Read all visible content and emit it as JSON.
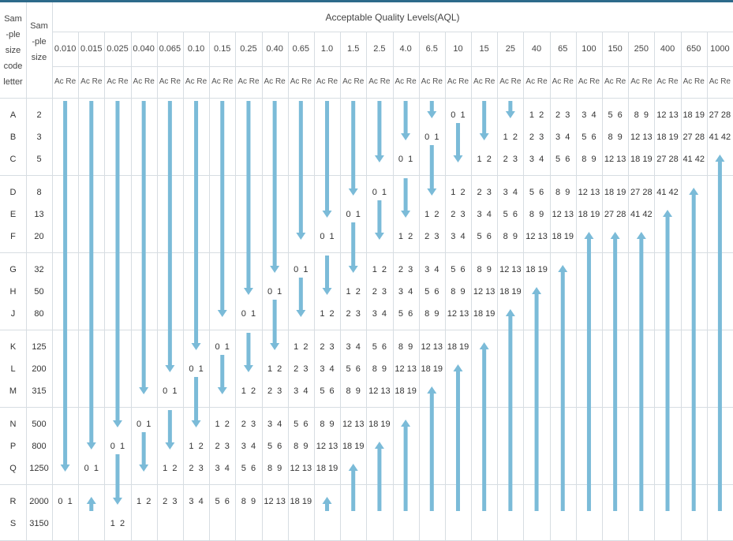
{
  "header": {
    "letter_col": [
      "Sam",
      "-ple",
      "size",
      "code",
      "letter"
    ],
    "size_col": [
      "Sam",
      "-ple",
      "size"
    ],
    "aql_title": "Acceptable Quality Levels(AQL)",
    "acre_label": "Ac Re"
  },
  "aql_levels": [
    "0.010",
    "0.015",
    "0.025",
    "0.040",
    "0.065",
    "0.10",
    "0.15",
    "0.25",
    "0.40",
    "0.65",
    "1.0",
    "1.5",
    "2.5",
    "4.0",
    "6.5",
    "10",
    "15",
    "25",
    "40",
    "65",
    "100",
    "150",
    "250",
    "400",
    "650",
    "1000"
  ],
  "rows": [
    {
      "letter": "A",
      "size": "2"
    },
    {
      "letter": "B",
      "size": "3"
    },
    {
      "letter": "C",
      "size": "5"
    },
    {
      "letter": "D",
      "size": "8"
    },
    {
      "letter": "E",
      "size": "13"
    },
    {
      "letter": "F",
      "size": "20"
    },
    {
      "letter": "G",
      "size": "32"
    },
    {
      "letter": "H",
      "size": "50"
    },
    {
      "letter": "J",
      "size": "80"
    },
    {
      "letter": "K",
      "size": "125"
    },
    {
      "letter": "L",
      "size": "200"
    },
    {
      "letter": "M",
      "size": "315"
    },
    {
      "letter": "N",
      "size": "500"
    },
    {
      "letter": "P",
      "size": "800"
    },
    {
      "letter": "Q",
      "size": "1250"
    },
    {
      "letter": "R",
      "size": "2000"
    },
    {
      "letter": "S",
      "size": "3150"
    }
  ],
  "value_cells": [
    {
      "row": 0,
      "col": 15,
      "text": "0  1"
    },
    {
      "row": 0,
      "col": 18,
      "text": "1  2"
    },
    {
      "row": 0,
      "col": 19,
      "text": "2  3"
    },
    {
      "row": 0,
      "col": 20,
      "text": "3  4"
    },
    {
      "row": 0,
      "col": 21,
      "text": "5  6"
    },
    {
      "row": 0,
      "col": 22,
      "text": "8  9"
    },
    {
      "row": 0,
      "col": 23,
      "text": "12 13"
    },
    {
      "row": 0,
      "col": 24,
      "text": "18 19"
    },
    {
      "row": 0,
      "col": 25,
      "text": "27 28"
    },
    {
      "row": 1,
      "col": 14,
      "text": "0  1"
    },
    {
      "row": 1,
      "col": 17,
      "text": "1  2"
    },
    {
      "row": 1,
      "col": 18,
      "text": "2  3"
    },
    {
      "row": 1,
      "col": 19,
      "text": "3  4"
    },
    {
      "row": 1,
      "col": 20,
      "text": "5  6"
    },
    {
      "row": 1,
      "col": 21,
      "text": "8  9"
    },
    {
      "row": 1,
      "col": 22,
      "text": "12 13"
    },
    {
      "row": 1,
      "col": 23,
      "text": "18 19"
    },
    {
      "row": 1,
      "col": 24,
      "text": "27 28"
    },
    {
      "row": 1,
      "col": 25,
      "text": "41 42"
    },
    {
      "row": 2,
      "col": 13,
      "text": "0  1"
    },
    {
      "row": 2,
      "col": 16,
      "text": "1  2"
    },
    {
      "row": 2,
      "col": 17,
      "text": "2  3"
    },
    {
      "row": 2,
      "col": 18,
      "text": "3  4"
    },
    {
      "row": 2,
      "col": 19,
      "text": "5  6"
    },
    {
      "row": 2,
      "col": 20,
      "text": "8  9"
    },
    {
      "row": 2,
      "col": 21,
      "text": "12 13"
    },
    {
      "row": 2,
      "col": 22,
      "text": "18 19"
    },
    {
      "row": 2,
      "col": 23,
      "text": "27 28"
    },
    {
      "row": 2,
      "col": 24,
      "text": "41 42"
    },
    {
      "row": 3,
      "col": 12,
      "text": "0  1"
    },
    {
      "row": 3,
      "col": 15,
      "text": "1  2"
    },
    {
      "row": 3,
      "col": 16,
      "text": "2  3"
    },
    {
      "row": 3,
      "col": 17,
      "text": "3  4"
    },
    {
      "row": 3,
      "col": 18,
      "text": "5  6"
    },
    {
      "row": 3,
      "col": 19,
      "text": "8  9"
    },
    {
      "row": 3,
      "col": 20,
      "text": "12 13"
    },
    {
      "row": 3,
      "col": 21,
      "text": "18 19"
    },
    {
      "row": 3,
      "col": 22,
      "text": "27 28"
    },
    {
      "row": 3,
      "col": 23,
      "text": "41 42"
    },
    {
      "row": 4,
      "col": 11,
      "text": "0  1"
    },
    {
      "row": 4,
      "col": 14,
      "text": "1  2"
    },
    {
      "row": 4,
      "col": 15,
      "text": "2  3"
    },
    {
      "row": 4,
      "col": 16,
      "text": "3  4"
    },
    {
      "row": 4,
      "col": 17,
      "text": "5  6"
    },
    {
      "row": 4,
      "col": 18,
      "text": "8  9"
    },
    {
      "row": 4,
      "col": 19,
      "text": "12 13"
    },
    {
      "row": 4,
      "col": 20,
      "text": "18 19"
    },
    {
      "row": 4,
      "col": 21,
      "text": "27 28"
    },
    {
      "row": 4,
      "col": 22,
      "text": "41 42"
    },
    {
      "row": 5,
      "col": 10,
      "text": "0  1"
    },
    {
      "row": 5,
      "col": 13,
      "text": "1  2"
    },
    {
      "row": 5,
      "col": 14,
      "text": "2  3"
    },
    {
      "row": 5,
      "col": 15,
      "text": "3  4"
    },
    {
      "row": 5,
      "col": 16,
      "text": "5  6"
    },
    {
      "row": 5,
      "col": 17,
      "text": "8  9"
    },
    {
      "row": 5,
      "col": 18,
      "text": "12 13"
    },
    {
      "row": 5,
      "col": 19,
      "text": "18 19"
    },
    {
      "row": 6,
      "col": 9,
      "text": "0  1"
    },
    {
      "row": 6,
      "col": 12,
      "text": "1  2"
    },
    {
      "row": 6,
      "col": 13,
      "text": "2  3"
    },
    {
      "row": 6,
      "col": 14,
      "text": "3  4"
    },
    {
      "row": 6,
      "col": 15,
      "text": "5  6"
    },
    {
      "row": 6,
      "col": 16,
      "text": "8  9"
    },
    {
      "row": 6,
      "col": 17,
      "text": "12 13"
    },
    {
      "row": 6,
      "col": 18,
      "text": "18 19"
    },
    {
      "row": 7,
      "col": 8,
      "text": "0  1"
    },
    {
      "row": 7,
      "col": 11,
      "text": "1  2"
    },
    {
      "row": 7,
      "col": 12,
      "text": "2  3"
    },
    {
      "row": 7,
      "col": 13,
      "text": "3  4"
    },
    {
      "row": 7,
      "col": 14,
      "text": "5  6"
    },
    {
      "row": 7,
      "col": 15,
      "text": "8  9"
    },
    {
      "row": 7,
      "col": 16,
      "text": "12 13"
    },
    {
      "row": 7,
      "col": 17,
      "text": "18 19"
    },
    {
      "row": 8,
      "col": 7,
      "text": "0  1"
    },
    {
      "row": 8,
      "col": 10,
      "text": "1  2"
    },
    {
      "row": 8,
      "col": 11,
      "text": "2  3"
    },
    {
      "row": 8,
      "col": 12,
      "text": "3  4"
    },
    {
      "row": 8,
      "col": 13,
      "text": "5  6"
    },
    {
      "row": 8,
      "col": 14,
      "text": "8  9"
    },
    {
      "row": 8,
      "col": 15,
      "text": "12 13"
    },
    {
      "row": 8,
      "col": 16,
      "text": "18 19"
    },
    {
      "row": 9,
      "col": 6,
      "text": "0  1"
    },
    {
      "row": 9,
      "col": 9,
      "text": "1  2"
    },
    {
      "row": 9,
      "col": 10,
      "text": "2  3"
    },
    {
      "row": 9,
      "col": 11,
      "text": "3  4"
    },
    {
      "row": 9,
      "col": 12,
      "text": "5  6"
    },
    {
      "row": 9,
      "col": 13,
      "text": "8  9"
    },
    {
      "row": 9,
      "col": 14,
      "text": "12 13"
    },
    {
      "row": 9,
      "col": 15,
      "text": "18 19"
    },
    {
      "row": 10,
      "col": 5,
      "text": "0  1"
    },
    {
      "row": 10,
      "col": 8,
      "text": "1  2"
    },
    {
      "row": 10,
      "col": 9,
      "text": "2  3"
    },
    {
      "row": 10,
      "col": 10,
      "text": "3  4"
    },
    {
      "row": 10,
      "col": 11,
      "text": "5  6"
    },
    {
      "row": 10,
      "col": 12,
      "text": "8  9"
    },
    {
      "row": 10,
      "col": 13,
      "text": "12 13"
    },
    {
      "row": 10,
      "col": 14,
      "text": "18 19"
    },
    {
      "row": 11,
      "col": 4,
      "text": "0  1"
    },
    {
      "row": 11,
      "col": 7,
      "text": "1  2"
    },
    {
      "row": 11,
      "col": 8,
      "text": "2  3"
    },
    {
      "row": 11,
      "col": 9,
      "text": "3  4"
    },
    {
      "row": 11,
      "col": 10,
      "text": "5  6"
    },
    {
      "row": 11,
      "col": 11,
      "text": "8  9"
    },
    {
      "row": 11,
      "col": 12,
      "text": "12 13"
    },
    {
      "row": 11,
      "col": 13,
      "text": "18 19"
    },
    {
      "row": 12,
      "col": 3,
      "text": "0  1"
    },
    {
      "row": 12,
      "col": 6,
      "text": "1  2"
    },
    {
      "row": 12,
      "col": 7,
      "text": "2  3"
    },
    {
      "row": 12,
      "col": 8,
      "text": "3  4"
    },
    {
      "row": 12,
      "col": 9,
      "text": "5  6"
    },
    {
      "row": 12,
      "col": 10,
      "text": "8  9"
    },
    {
      "row": 12,
      "col": 11,
      "text": "12 13"
    },
    {
      "row": 12,
      "col": 12,
      "text": "18 19"
    },
    {
      "row": 13,
      "col": 2,
      "text": "0  1"
    },
    {
      "row": 13,
      "col": 5,
      "text": "1  2"
    },
    {
      "row": 13,
      "col": 6,
      "text": "2  3"
    },
    {
      "row": 13,
      "col": 7,
      "text": "3  4"
    },
    {
      "row": 13,
      "col": 8,
      "text": "5  6"
    },
    {
      "row": 13,
      "col": 9,
      "text": "8  9"
    },
    {
      "row": 13,
      "col": 10,
      "text": "12 13"
    },
    {
      "row": 13,
      "col": 11,
      "text": "18 19"
    },
    {
      "row": 14,
      "col": 1,
      "text": "0  1"
    },
    {
      "row": 14,
      "col": 4,
      "text": "1  2"
    },
    {
      "row": 14,
      "col": 5,
      "text": "2  3"
    },
    {
      "row": 14,
      "col": 6,
      "text": "3  4"
    },
    {
      "row": 14,
      "col": 7,
      "text": "5  6"
    },
    {
      "row": 14,
      "col": 8,
      "text": "8  9"
    },
    {
      "row": 14,
      "col": 9,
      "text": "12 13"
    },
    {
      "row": 14,
      "col": 10,
      "text": "18 19"
    },
    {
      "row": 15,
      "col": 0,
      "text": "0  1"
    },
    {
      "row": 15,
      "col": 3,
      "text": "1  2"
    },
    {
      "row": 15,
      "col": 4,
      "text": "2  3"
    },
    {
      "row": 15,
      "col": 5,
      "text": "3  4"
    },
    {
      "row": 15,
      "col": 6,
      "text": "5  6"
    },
    {
      "row": 15,
      "col": 7,
      "text": "8  9"
    },
    {
      "row": 15,
      "col": 8,
      "text": "12 13"
    },
    {
      "row": 15,
      "col": 9,
      "text": "18 19"
    },
    {
      "row": 16,
      "col": 2,
      "text": "1  2"
    }
  ],
  "arrows": [
    {
      "col": 0,
      "dir": "down",
      "from_row": 0,
      "to_row": 14
    },
    {
      "col": 1,
      "dir": "down",
      "from_row": 0,
      "to_row": 13
    },
    {
      "col": 2,
      "dir": "down",
      "from_row": 0,
      "to_row": 12
    },
    {
      "col": 3,
      "dir": "down",
      "from_row": 0,
      "to_row": 11
    },
    {
      "col": 4,
      "dir": "down",
      "from_row": 0,
      "to_row": 10
    },
    {
      "col": 5,
      "dir": "down",
      "from_row": 0,
      "to_row": 9
    },
    {
      "col": 6,
      "dir": "down",
      "from_row": 0,
      "to_row": 8
    },
    {
      "col": 7,
      "dir": "down",
      "from_row": 0,
      "to_row": 7
    },
    {
      "col": 8,
      "dir": "down",
      "from_row": 0,
      "to_row": 6
    },
    {
      "col": 9,
      "dir": "down",
      "from_row": 0,
      "to_row": 5
    },
    {
      "col": 10,
      "dir": "down",
      "from_row": 0,
      "to_row": 4
    },
    {
      "col": 11,
      "dir": "down",
      "from_row": 0,
      "to_row": 3
    },
    {
      "col": 12,
      "dir": "down",
      "from_row": 0,
      "to_row": 2
    },
    {
      "col": 13,
      "dir": "down",
      "from_row": 0,
      "to_row": 1
    },
    {
      "col": 14,
      "dir": "down",
      "from_row": 0,
      "to_row": 0
    },
    {
      "col": 15,
      "dir": "down",
      "from_row": 1,
      "to_row": 2
    },
    {
      "col": 16,
      "dir": "down",
      "from_row": 0,
      "to_row": 1
    },
    {
      "col": 17,
      "dir": "down",
      "from_row": 0,
      "to_row": 0
    },
    {
      "col": 14,
      "dir": "down",
      "from_row": 2,
      "to_row": 3
    },
    {
      "col": 13,
      "dir": "down",
      "from_row": 3,
      "to_row": 4
    },
    {
      "col": 12,
      "dir": "down",
      "from_row": 4,
      "to_row": 5
    },
    {
      "col": 11,
      "dir": "down",
      "from_row": 5,
      "to_row": 6
    },
    {
      "col": 10,
      "dir": "down",
      "from_row": 6,
      "to_row": 7
    },
    {
      "col": 9,
      "dir": "down",
      "from_row": 7,
      "to_row": 8
    },
    {
      "col": 8,
      "dir": "down",
      "from_row": 8,
      "to_row": 9
    },
    {
      "col": 7,
      "dir": "down",
      "from_row": 9,
      "to_row": 10
    },
    {
      "col": 6,
      "dir": "down",
      "from_row": 10,
      "to_row": 11
    },
    {
      "col": 5,
      "dir": "down",
      "from_row": 11,
      "to_row": 12
    },
    {
      "col": 4,
      "dir": "down",
      "from_row": 12,
      "to_row": 13
    },
    {
      "col": 3,
      "dir": "down",
      "from_row": 13,
      "to_row": 14
    },
    {
      "col": 2,
      "dir": "down",
      "from_row": 14,
      "to_row": 15
    },
    {
      "col": 1,
      "dir": "up",
      "from_row": 15,
      "to_row": 15
    },
    {
      "col": 10,
      "dir": "up",
      "from_row": 15,
      "to_row": 15
    },
    {
      "col": 11,
      "dir": "up",
      "from_row": 14,
      "to_row": 15
    },
    {
      "col": 12,
      "dir": "up",
      "from_row": 13,
      "to_row": 15
    },
    {
      "col": 13,
      "dir": "up",
      "from_row": 12,
      "to_row": 15
    },
    {
      "col": 14,
      "dir": "up",
      "from_row": 11,
      "to_row": 15
    },
    {
      "col": 15,
      "dir": "up",
      "from_row": 10,
      "to_row": 15
    },
    {
      "col": 16,
      "dir": "up",
      "from_row": 9,
      "to_row": 15
    },
    {
      "col": 17,
      "dir": "up",
      "from_row": 8,
      "to_row": 15
    },
    {
      "col": 18,
      "dir": "up",
      "from_row": 7,
      "to_row": 15
    },
    {
      "col": 19,
      "dir": "up",
      "from_row": 6,
      "to_row": 15
    },
    {
      "col": 20,
      "dir": "up",
      "from_row": 5,
      "to_row": 15
    },
    {
      "col": 21,
      "dir": "up",
      "from_row": 5,
      "to_row": 15
    },
    {
      "col": 22,
      "dir": "up",
      "from_row": 5,
      "to_row": 15
    },
    {
      "col": 23,
      "dir": "up",
      "from_row": 4,
      "to_row": 15
    },
    {
      "col": 24,
      "dir": "up",
      "from_row": 3,
      "to_row": 15
    },
    {
      "col": 25,
      "dir": "up",
      "from_row": 2,
      "to_row": 15
    }
  ],
  "colors": {
    "arrow": "#7bbbd8",
    "grid": "#d7dde2",
    "topbar": "#2d6a8a",
    "text": "#333333"
  }
}
